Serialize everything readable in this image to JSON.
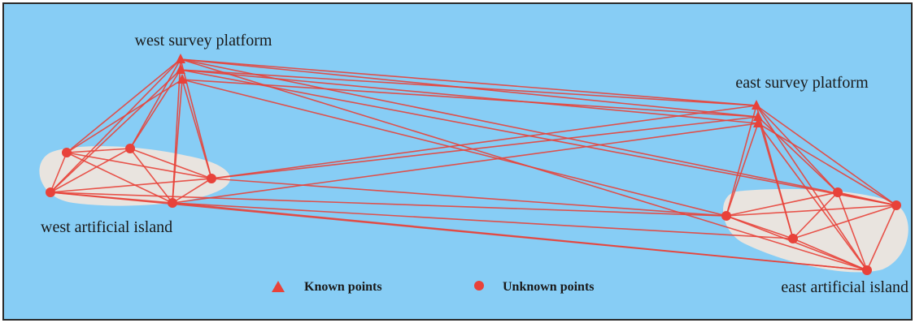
{
  "labels": {
    "west_platform": "west survey platform",
    "east_platform": "east survey platform",
    "west_island": "west artificial island",
    "east_island": "east artificial island"
  },
  "legend": {
    "known": "Known points",
    "unknown": "Unknown points"
  },
  "colors": {
    "water": "#87cdf5",
    "island": "#e9e4df",
    "network": "#e8423a",
    "border": "#2a2a2a"
  },
  "icons": {
    "known_point": "red-triangle-icon",
    "unknown_point": "red-dot-icon"
  }
}
